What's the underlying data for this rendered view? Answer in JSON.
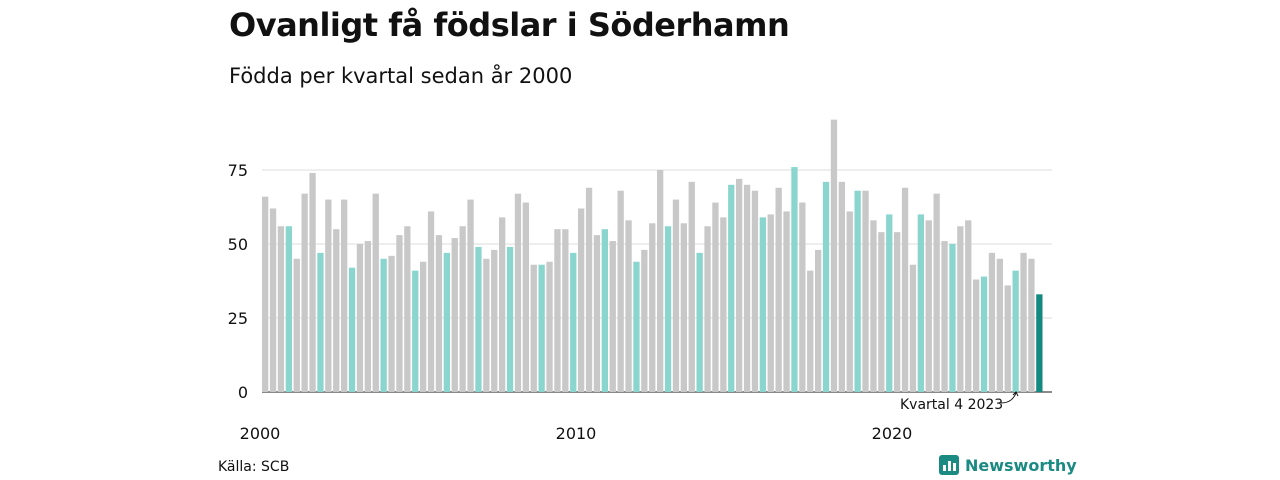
{
  "title": "Ovanligt få födslar i Söderhamn",
  "subtitle": "Födda per kvartal sedan år 2000",
  "source": "Källa: SCB",
  "brand": "Newsworthy",
  "colors": {
    "default": "#c8c8c8",
    "q4": "#8ad6cf",
    "latest": "#14897f",
    "grid": "#dddddd"
  },
  "chart_data": {
    "type": "bar",
    "title": "Ovanligt få födslar i Söderhamn",
    "subtitle": "Födda per kvartal sedan år 2000",
    "ylim": [
      0,
      95
    ],
    "y_ticks": [
      0,
      25,
      50,
      75
    ],
    "x_tick_labels": [
      "2000",
      "2010",
      "2020"
    ],
    "highlight": "every fourth quarter (kvartal 4) in teal; latest quarter in dark teal",
    "annotation": "Kvartal 4 2023",
    "grid": true,
    "values": [
      66,
      62,
      56,
      56,
      45,
      67,
      74,
      47,
      65,
      55,
      65,
      42,
      50,
      51,
      67,
      45,
      46,
      53,
      56,
      41,
      44,
      61,
      53,
      47,
      52,
      56,
      65,
      49,
      45,
      48,
      59,
      49,
      67,
      64,
      43,
      43,
      44,
      55,
      55,
      47,
      62,
      69,
      53,
      55,
      51,
      68,
      58,
      44,
      48,
      57,
      75,
      56,
      65,
      57,
      71,
      47,
      56,
      64,
      59,
      70,
      72,
      70,
      68,
      59,
      60,
      69,
      61,
      76,
      64,
      41,
      48,
      71,
      92,
      71,
      61,
      68,
      68,
      58,
      54,
      60,
      54,
      69,
      43,
      60,
      58,
      67,
      51,
      50,
      56,
      58,
      38,
      39,
      47,
      45,
      36,
      41,
      47,
      45,
      33
    ]
  }
}
